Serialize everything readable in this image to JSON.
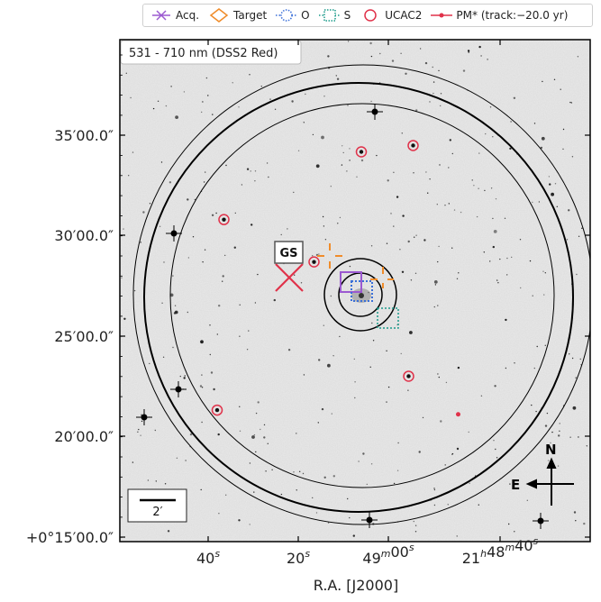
{
  "chart_data": {
    "type": "scatter",
    "title": "",
    "xlabel": "R.A. [J2000]",
    "ylabel": "",
    "x_tick_labels": [
      "40s",
      "20s",
      "49m00s",
      "21h48m40s"
    ],
    "x_ticks_display": [
      {
        "main": "40",
        "sup": "s"
      },
      {
        "main": "20",
        "sup": "s"
      },
      {
        "main": "49",
        "sup": "m",
        "main2": "00",
        "sup2": "s"
      },
      {
        "main": "21",
        "sup": "h",
        "main2": "48",
        "sup2": "m",
        "main3": "40",
        "sup3": "s"
      }
    ],
    "y_tick_labels": [
      "35′00.0″",
      "30′00.0″",
      "25′00.0″",
      "20′00.0″",
      "+0°15′00.0″"
    ],
    "image_band_label": "531 - 710 nm (DSS2 Red)",
    "guide_star_label": "GS",
    "scale_bar_label": "2′",
    "compass": {
      "north": "N",
      "east": "E"
    },
    "legend": [
      {
        "label": "Acq.",
        "color": "#9b59d0",
        "icon": "acq-cross-icon"
      },
      {
        "label": "Target",
        "color": "#f08c2a",
        "icon": "diamond-icon"
      },
      {
        "label": "O",
        "color": "#3a6fd8",
        "icon": "dotted-circle-icon"
      },
      {
        "label": "S",
        "color": "#1a9a8a",
        "icon": "dotted-square-icon"
      },
      {
        "label": "UCAC2",
        "color": "#e0324a",
        "icon": "circle-icon"
      },
      {
        "label": "PM* (track:−20.0 yr)",
        "color": "#e0324a",
        "icon": "pm-track-icon"
      }
    ],
    "ucac2_stars": [
      {
        "ra_s": 36.5,
        "dec_arcmin": 30.0
      },
      {
        "ra_s": 38.0,
        "dec_arcmin": 21.0
      },
      {
        "ra_s": 16.5,
        "dec_arcmin": 28.0
      },
      {
        "ra_s": 6.0,
        "dec_arcmin": 33.2
      },
      {
        "ra_s": -5.5,
        "dec_arcmin": 33.5
      },
      {
        "ra_s": -4.5,
        "dec_arcmin": 22.6
      }
    ],
    "pm_star": {
      "ra_s": -15.5,
      "dec_arcmin": 20.8
    },
    "ylim_arcmin": [
      15.0,
      38.5
    ],
    "grid": false,
    "colors": {
      "target": "#f08c2a",
      "acq": "#9b59d0",
      "o": "#3a6fd8",
      "s": "#1a9a8a",
      "ucac2": "#e0324a",
      "axes": "#000000"
    }
  }
}
